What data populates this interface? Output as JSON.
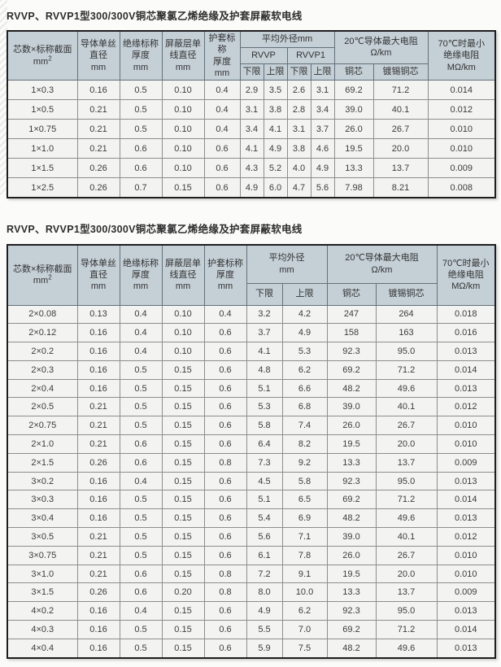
{
  "section1": {
    "title": "RVVP、RVVP1型300/300V铜芯聚氯乙烯绝缘及护套屏蔽软电线",
    "header": {
      "core_label": "芯数×标称截面",
      "core_unit": "mm",
      "core_sup": "2",
      "conductor": "导体单丝\n直径\nmm",
      "insulation": "绝缘标称\n厚度\nmm",
      "shield": "屏蔽层单\n线直径\nmm",
      "sheath": "护套标称\n厚度\nmm",
      "avg_od": "平均外径mm",
      "rvvp": "RVVP",
      "rvvp1": "RVVP1",
      "lower1": "下限",
      "upper1": "上限",
      "lower2": "下限",
      "upper2": "上限",
      "resistance": "20℃导体最大电阻\nΩ/km",
      "copper": "铜芯",
      "tinned": "镀锡铜芯",
      "min_insulation": "70℃时最小\n绝缘电阻\nMΩ/km"
    },
    "rows": [
      [
        "1×0.3",
        "0.16",
        "0.5",
        "0.10",
        "0.4",
        "2.9",
        "3.5",
        "2.6",
        "3.1",
        "69.2",
        "71.2",
        "0.014"
      ],
      [
        "1×0.5",
        "0.21",
        "0.5",
        "0.10",
        "0.4",
        "3.1",
        "3.8",
        "2.8",
        "3.4",
        "39.0",
        "40.1",
        "0.012"
      ],
      [
        "1×0.75",
        "0.21",
        "0.5",
        "0.10",
        "0.4",
        "3.4",
        "4.1",
        "3.1",
        "3.7",
        "26.0",
        "26.7",
        "0.010"
      ],
      [
        "1×1.0",
        "0.21",
        "0.6",
        "0.10",
        "0.6",
        "4.1",
        "4.9",
        "3.8",
        "4.6",
        "19.5",
        "20.0",
        "0.010"
      ],
      [
        "1×1.5",
        "0.26",
        "0.6",
        "0.10",
        "0.6",
        "4.3",
        "5.2",
        "4.0",
        "4.9",
        "13.3",
        "13.7",
        "0.009"
      ],
      [
        "1×2.5",
        "0.26",
        "0.7",
        "0.15",
        "0.6",
        "4.9",
        "6.0",
        "4.7",
        "5.6",
        "7.98",
        "8.21",
        "0.008"
      ]
    ]
  },
  "section2": {
    "title": "RVVP、RVVP1型300/300V铜芯聚氯乙烯绝缘及护套屏蔽软电线",
    "header": {
      "core_label": "芯数×标称截面",
      "core_unit": "mm",
      "core_sup": "2",
      "conductor": "导体单丝\n直径\nmm",
      "insulation": "绝缘标称\n厚度\nmm",
      "shield": "屏蔽层单\n线直径\nmm",
      "sheath": "护套标称\n厚度\nmm",
      "avg_od": "平均外径\nmm",
      "lower": "下限",
      "upper": "上限",
      "resistance": "20℃导体最大电阻\nΩ/km",
      "copper": "铜芯",
      "tinned": "镀锡铜芯",
      "min_insulation": "70℃时最小\n绝缘电阻\nMΩ/km"
    },
    "rows": [
      [
        "2×0.08",
        "0.13",
        "0.4",
        "0.10",
        "0.4",
        "3.2",
        "4.2",
        "247",
        "264",
        "0.018"
      ],
      [
        "2×0.12",
        "0.16",
        "0.4",
        "0.10",
        "0.6",
        "3.7",
        "4.9",
        "158",
        "163",
        "0.016"
      ],
      [
        "2×0.2",
        "0.16",
        "0.4",
        "0.10",
        "0.6",
        "4.1",
        "5.3",
        "92.3",
        "95.0",
        "0.013"
      ],
      [
        "2×0.3",
        "0.16",
        "0.5",
        "0.15",
        "0.6",
        "4.8",
        "6.2",
        "69.2",
        "71.2",
        "0.014"
      ],
      [
        "2×0.4",
        "0.16",
        "0.5",
        "0.15",
        "0.6",
        "5.1",
        "6.6",
        "48.2",
        "49.6",
        "0.013"
      ],
      [
        "2×0.5",
        "0.21",
        "0.5",
        "0.15",
        "0.6",
        "5.3",
        "6.8",
        "39.0",
        "40.1",
        "0.012"
      ],
      [
        "2×0.75",
        "0.21",
        "0.5",
        "0.15",
        "0.6",
        "5.8",
        "7.4",
        "26.0",
        "26.7",
        "0.010"
      ],
      [
        "2×1.0",
        "0.21",
        "0.6",
        "0.15",
        "0.6",
        "6.4",
        "8.2",
        "19.5",
        "20.0",
        "0.010"
      ],
      [
        "2×1.5",
        "0.26",
        "0.6",
        "0.15",
        "0.8",
        "7.3",
        "9.2",
        "13.3",
        "13.7",
        "0.009"
      ],
      [
        "3×0.2",
        "0.16",
        "0.4",
        "0.15",
        "0.6",
        "4.5",
        "5.8",
        "92.3",
        "95.0",
        "0.013"
      ],
      [
        "3×0.3",
        "0.16",
        "0.5",
        "0.15",
        "0.6",
        "5.1",
        "6.5",
        "69.2",
        "71.2",
        "0.014"
      ],
      [
        "3×0.4",
        "0.16",
        "0.5",
        "0.15",
        "0.6",
        "5.4",
        "6.9",
        "48.2",
        "49.6",
        "0.013"
      ],
      [
        "3×0.5",
        "0.21",
        "0.5",
        "0.15",
        "0.6",
        "5.6",
        "7.1",
        "39.0",
        "40.1",
        "0.012"
      ],
      [
        "3×0.75",
        "0.21",
        "0.5",
        "0.15",
        "0.6",
        "6.1",
        "7.8",
        "26.0",
        "26.7",
        "0.010"
      ],
      [
        "3×1.0",
        "0.21",
        "0.6",
        "0.15",
        "0.8",
        "7.2",
        "9.1",
        "19.5",
        "20.0",
        "0.010"
      ],
      [
        "3×1.5",
        "0.26",
        "0.6",
        "0.20",
        "0.8",
        "8.0",
        "10.0",
        "13.3",
        "13.7",
        "0.009"
      ],
      [
        "4×0.2",
        "0.16",
        "0.4",
        "0.15",
        "0.6",
        "4.9",
        "6.2",
        "92.3",
        "95.0",
        "0.013"
      ],
      [
        "4×0.3",
        "0.16",
        "0.5",
        "0.15",
        "0.6",
        "5.5",
        "7.0",
        "69.2",
        "71.2",
        "0.014"
      ],
      [
        "4×0.4",
        "0.16",
        "0.5",
        "0.15",
        "0.6",
        "5.9",
        "7.5",
        "48.2",
        "49.6",
        "0.013"
      ]
    ]
  },
  "colors": {
    "header_bg": "#c4cfd6",
    "cell_bg": "#f3f3f1",
    "outer_border": "#1e1e1e",
    "inner_border": "#8d8d8d",
    "text": "#3c3c3c"
  }
}
